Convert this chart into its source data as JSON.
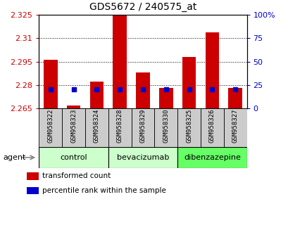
{
  "title": "GDS5672 / 240575_at",
  "samples": [
    "GSM958322",
    "GSM958323",
    "GSM958324",
    "GSM958328",
    "GSM958329",
    "GSM958330",
    "GSM958325",
    "GSM958326",
    "GSM958327"
  ],
  "red_values": [
    2.296,
    2.267,
    2.282,
    2.325,
    2.288,
    2.278,
    2.298,
    2.314,
    2.278
  ],
  "blue_percentiles": [
    20,
    20,
    20,
    20,
    20,
    20,
    20,
    20,
    20
  ],
  "y_min": 2.265,
  "y_max": 2.325,
  "y_ticks": [
    2.265,
    2.28,
    2.295,
    2.31,
    2.325
  ],
  "y_tick_labels": [
    "2.265",
    "2.28",
    "2.295",
    "2.31",
    "2.325"
  ],
  "right_y_ticks": [
    0,
    25,
    50,
    75,
    100
  ],
  "right_y_labels": [
    "0",
    "25",
    "50",
    "75",
    "100%"
  ],
  "groups": [
    {
      "label": "control",
      "indices": [
        0,
        1,
        2
      ],
      "color": "#ccffcc"
    },
    {
      "label": "bevacizumab",
      "indices": [
        3,
        4,
        5
      ],
      "color": "#ccffcc"
    },
    {
      "label": "dibenzazepine",
      "indices": [
        6,
        7,
        8
      ],
      "color": "#66ff66"
    }
  ],
  "bar_color": "#cc0000",
  "blue_color": "#0000cc",
  "bar_width": 0.6,
  "agent_label": "agent",
  "legend_items": [
    {
      "label": "transformed count",
      "color": "#cc0000"
    },
    {
      "label": "percentile rank within the sample",
      "color": "#0000cc"
    }
  ],
  "left_tick_color": "#cc0000",
  "right_tick_color": "#0000cc",
  "label_bg_color": "#cccccc",
  "grid_color": "black",
  "grid_lw": 0.7
}
